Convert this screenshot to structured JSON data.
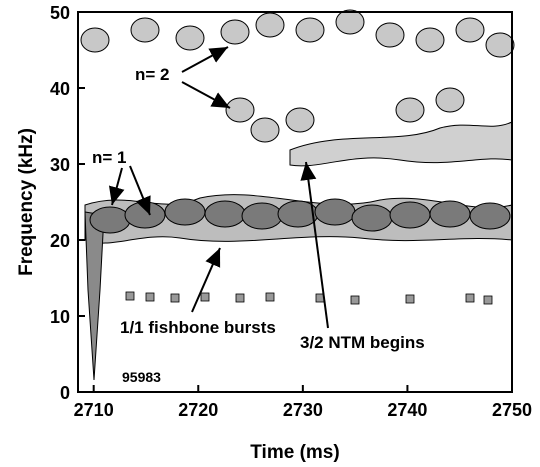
{
  "chart_data": {
    "type": "contour",
    "xlabel": "Time (ms)",
    "ylabel": "Frequency (kHz)",
    "xlim": [
      2708.5,
      2750
    ],
    "ylim": [
      0,
      50
    ],
    "xticks": [
      2710,
      2720,
      2730,
      2740,
      2750
    ],
    "yticks": [
      0,
      10,
      20,
      30,
      40,
      50
    ],
    "annotations": [
      "n= 2",
      "n= 1",
      "1/1 fishbone bursts",
      "3/2 NTM begins",
      "95983"
    ]
  }
}
